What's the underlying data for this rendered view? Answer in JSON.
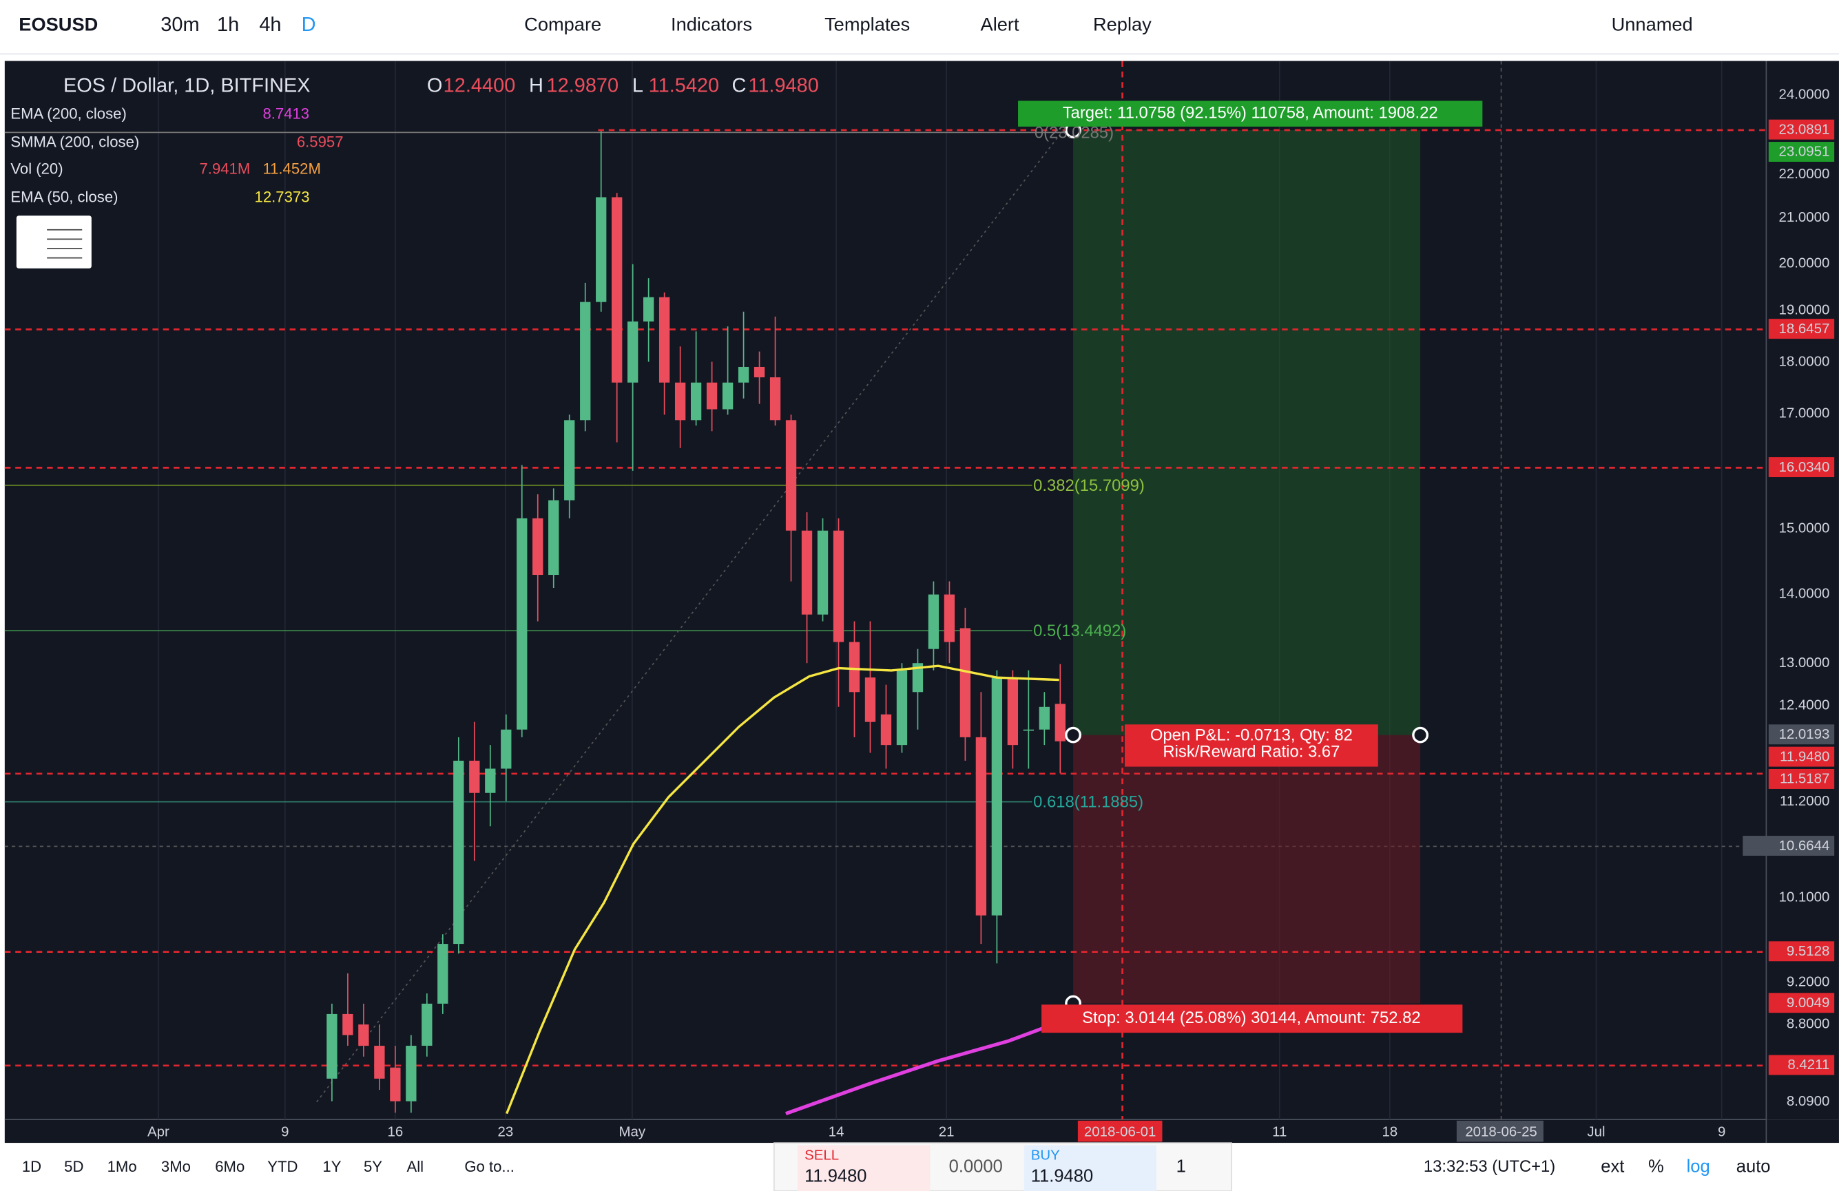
{
  "toolbar": {
    "symbol": "EOSUSD",
    "intervals": [
      "30m",
      "1h",
      "4h",
      "D"
    ],
    "compare": "Compare",
    "indicators": "Indicators",
    "templates": "Templates",
    "alert": "Alert",
    "replay": "Replay",
    "layout": "Unnamed"
  },
  "legend": {
    "title": "EOS / Dollar, 1D, BITFINEX",
    "ohlc": [
      {
        "key": "O",
        "value": "12.4400"
      },
      {
        "key": "H",
        "value": "12.9870"
      },
      {
        "key": "L",
        "value": "11.5420"
      },
      {
        "key": "C",
        "value": "11.9480"
      }
    ],
    "studies": [
      {
        "name": "EMA (200, close)",
        "values": [
          "8.7413"
        ]
      },
      {
        "name": "SMMA (200, close)",
        "values": [
          "6.5957"
        ]
      },
      {
        "name": "Vol (20)",
        "values": [
          "7.941M",
          "11.452M"
        ]
      },
      {
        "name": "EMA (50, close)",
        "values": [
          "12.7373"
        ]
      }
    ]
  },
  "price_axis": [
    "24.0000",
    "23.0891",
    "23.0951",
    "22.0000",
    "21.0000",
    "20.0000",
    "19.0000",
    "18.6457",
    "18.0000",
    "17.0000",
    "16.0340",
    "15.0000",
    "14.0000",
    "13.0000",
    "12.4000",
    "12.0193",
    "11.9480",
    "11.5187",
    "11.2000",
    "10.6644",
    "10.1000",
    "9.5128",
    "9.2000",
    "9.0049",
    "8.8000",
    "8.4211",
    "8.0900"
  ],
  "time_axis": [
    "Apr",
    "9",
    "16",
    "23",
    "May",
    "14",
    "21",
    "2018-06-01",
    "11",
    "18",
    "2018-06-25",
    "Jul",
    "9"
  ],
  "fib_levels": [
    "0(23.0285)",
    "0.382(15.7099)",
    "0.5(13.4492)",
    "0.618(11.1885)"
  ],
  "position": {
    "target": "Target: 11.0758 (92.15%) 110758, Amount: 1908.22",
    "pnl": "Open P&L: -0.0713, Qty: 82",
    "ratio": "Risk/Reward Ratio: 3.67",
    "stop": "Stop: 3.0144 (25.08%) 30144, Amount: 752.82"
  },
  "bottom": {
    "ranges": [
      "1D",
      "5D",
      "1Mo",
      "3Mo",
      "6Mo",
      "YTD",
      "1Y",
      "5Y",
      "All"
    ],
    "goto": "Go to...",
    "sell_label": "SELL",
    "sell_price": "11.9480",
    "spread": "0.0000",
    "buy_label": "BUY",
    "buy_price": "11.9480",
    "qty": "1",
    "clock": "13:32:53 (UTC+1)",
    "options": [
      "ext",
      "%",
      "log",
      "auto"
    ]
  },
  "candles": [
    [
      8.3,
      9.0,
      8.1,
      8.9
    ],
    [
      8.9,
      9.3,
      8.6,
      8.7
    ],
    [
      8.8,
      9.0,
      8.5,
      8.6
    ],
    [
      8.6,
      8.8,
      8.2,
      8.3
    ],
    [
      8.4,
      8.6,
      8.0,
      8.1
    ],
    [
      8.1,
      8.7,
      8.0,
      8.6
    ],
    [
      8.6,
      9.1,
      8.5,
      9.0
    ],
    [
      9.0,
      9.7,
      8.9,
      9.6
    ],
    [
      9.6,
      12.0,
      9.5,
      11.7
    ],
    [
      11.7,
      12.2,
      10.5,
      11.3
    ],
    [
      11.3,
      11.9,
      10.9,
      11.6
    ],
    [
      11.6,
      12.3,
      11.2,
      12.1
    ],
    [
      12.1,
      16.1,
      12.0,
      15.2
    ],
    [
      15.2,
      15.6,
      13.6,
      14.3
    ],
    [
      14.3,
      15.7,
      14.1,
      15.5
    ],
    [
      15.5,
      17.0,
      15.2,
      16.9
    ],
    [
      16.9,
      19.6,
      16.7,
      19.2
    ],
    [
      19.2,
      23.09,
      19.0,
      21.5
    ],
    [
      21.5,
      21.6,
      16.5,
      17.6
    ],
    [
      17.6,
      20.0,
      16.0,
      18.8
    ],
    [
      18.8,
      19.7,
      18.0,
      19.3
    ],
    [
      19.3,
      19.4,
      17.0,
      17.6
    ],
    [
      17.6,
      18.3,
      16.4,
      16.9
    ],
    [
      16.9,
      18.6,
      16.8,
      17.6
    ],
    [
      17.6,
      18.0,
      16.7,
      17.1
    ],
    [
      17.1,
      18.7,
      17.0,
      17.6
    ],
    [
      17.6,
      19.0,
      17.3,
      17.9
    ],
    [
      17.9,
      18.2,
      17.2,
      17.7
    ],
    [
      17.7,
      18.9,
      16.8,
      16.9
    ],
    [
      16.9,
      17.0,
      14.2,
      15.0
    ],
    [
      15.0,
      15.3,
      13.0,
      13.7
    ],
    [
      13.7,
      15.2,
      13.6,
      15.0
    ],
    [
      15.0,
      15.2,
      12.4,
      13.3
    ],
    [
      13.3,
      13.6,
      12.0,
      12.6
    ],
    [
      12.8,
      13.6,
      11.8,
      12.2
    ],
    [
      12.3,
      12.7,
      11.6,
      11.9
    ],
    [
      11.9,
      13.0,
      11.8,
      12.9
    ],
    [
      12.6,
      13.2,
      12.1,
      13.0
    ],
    [
      13.2,
      14.2,
      12.9,
      14.0
    ],
    [
      14.0,
      14.2,
      13.0,
      13.3
    ],
    [
      13.5,
      13.8,
      11.7,
      12.0
    ],
    [
      12.0,
      12.6,
      9.6,
      9.9
    ],
    [
      9.9,
      12.9,
      9.4,
      12.8
    ],
    [
      12.8,
      12.9,
      11.6,
      11.9
    ],
    [
      12.1,
      12.9,
      11.6,
      12.1
    ],
    [
      12.1,
      12.6,
      11.9,
      12.4
    ],
    [
      12.44,
      12.987,
      11.542,
      11.948
    ]
  ]
}
